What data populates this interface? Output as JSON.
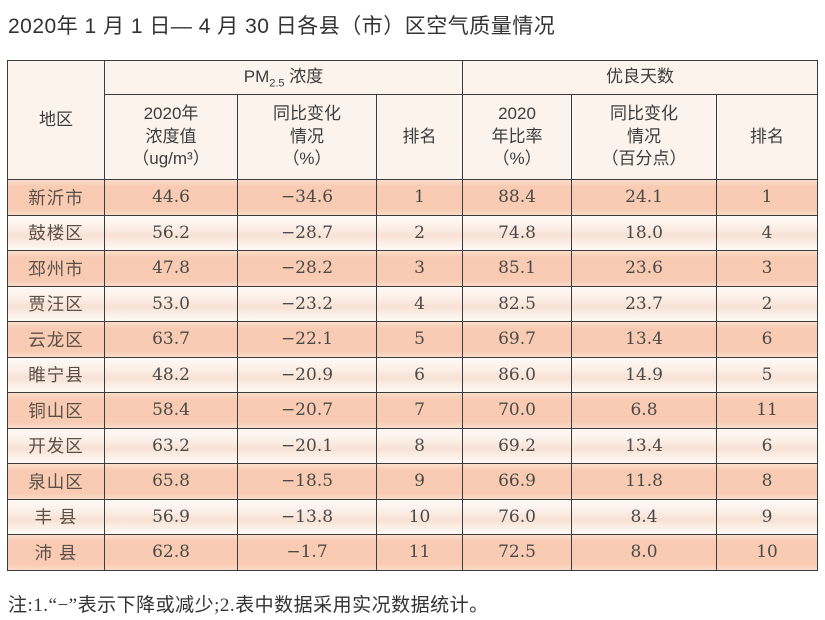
{
  "title": "2020年 1 月 1 日— 4 月 30 日各县（市）区空气质量情况",
  "table": {
    "corner_header": "地区",
    "group_headers": {
      "pm25_prefix": "PM",
      "pm25_sub": "2.5",
      "pm25_suffix": " 浓度",
      "good_days": "优良天数"
    },
    "sub_headers": {
      "pm_value": "2020年\n浓度值\n（ug/m³）",
      "pm_change": "同比变化\n情况\n（%）",
      "pm_rank": "排名",
      "gd_ratio": "2020\n年比率\n（%）",
      "gd_change": "同比变化\n情况\n（百分点）",
      "gd_rank": "排名"
    },
    "rows": [
      {
        "region": "新沂市",
        "pm_value": "44.6",
        "pm_change": "−34.6",
        "pm_rank": "1",
        "gd_ratio": "88.4",
        "gd_change": "24.1",
        "gd_rank": "1"
      },
      {
        "region": "鼓楼区",
        "pm_value": "56.2",
        "pm_change": "−28.7",
        "pm_rank": "2",
        "gd_ratio": "74.8",
        "gd_change": "18.0",
        "gd_rank": "4"
      },
      {
        "region": "邳州市",
        "pm_value": "47.8",
        "pm_change": "−28.2",
        "pm_rank": "3",
        "gd_ratio": "85.1",
        "gd_change": "23.6",
        "gd_rank": "3"
      },
      {
        "region": "贾汪区",
        "pm_value": "53.0",
        "pm_change": "−23.2",
        "pm_rank": "4",
        "gd_ratio": "82.5",
        "gd_change": "23.7",
        "gd_rank": "2"
      },
      {
        "region": "云龙区",
        "pm_value": "63.7",
        "pm_change": "−22.1",
        "pm_rank": "5",
        "gd_ratio": "69.7",
        "gd_change": "13.4",
        "gd_rank": "6"
      },
      {
        "region": "睢宁县",
        "pm_value": "48.2",
        "pm_change": "−20.9",
        "pm_rank": "6",
        "gd_ratio": "86.0",
        "gd_change": "14.9",
        "gd_rank": "5"
      },
      {
        "region": "铜山区",
        "pm_value": "58.4",
        "pm_change": "−20.7",
        "pm_rank": "7",
        "gd_ratio": "70.0",
        "gd_change": "6.8",
        "gd_rank": "11"
      },
      {
        "region": "开发区",
        "pm_value": "63.2",
        "pm_change": "−20.1",
        "pm_rank": "8",
        "gd_ratio": "69.2",
        "gd_change": "13.4",
        "gd_rank": "6"
      },
      {
        "region": "泉山区",
        "pm_value": "65.8",
        "pm_change": "−18.5",
        "pm_rank": "9",
        "gd_ratio": "66.9",
        "gd_change": "11.8",
        "gd_rank": "8"
      },
      {
        "region": "丰 县",
        "pm_value": "56.9",
        "pm_change": "−13.8",
        "pm_rank": "10",
        "gd_ratio": "76.0",
        "gd_change": "8.4",
        "gd_rank": "9"
      },
      {
        "region": "沛 县",
        "pm_value": "62.8",
        "pm_change": "−1.7",
        "pm_rank": "11",
        "gd_ratio": "72.5",
        "gd_change": "8.0",
        "gd_rank": "10"
      }
    ]
  },
  "note": "注:1.“−”表示下降或减少;2.表中数据采用实况数据统计。",
  "colors": {
    "row_dark": "#f8cbb2",
    "row_dark_edge": "#fbdecd",
    "row_light": "#fcf1ea",
    "row_light_center": "#f8e2d4",
    "row_light_edge": "#fefaf7",
    "header_bg": "#fcf3ec",
    "border": "#3c3c3c",
    "text_primary": "#4a4a4a",
    "region_text": "#5b5049",
    "title_text": "#333333"
  }
}
